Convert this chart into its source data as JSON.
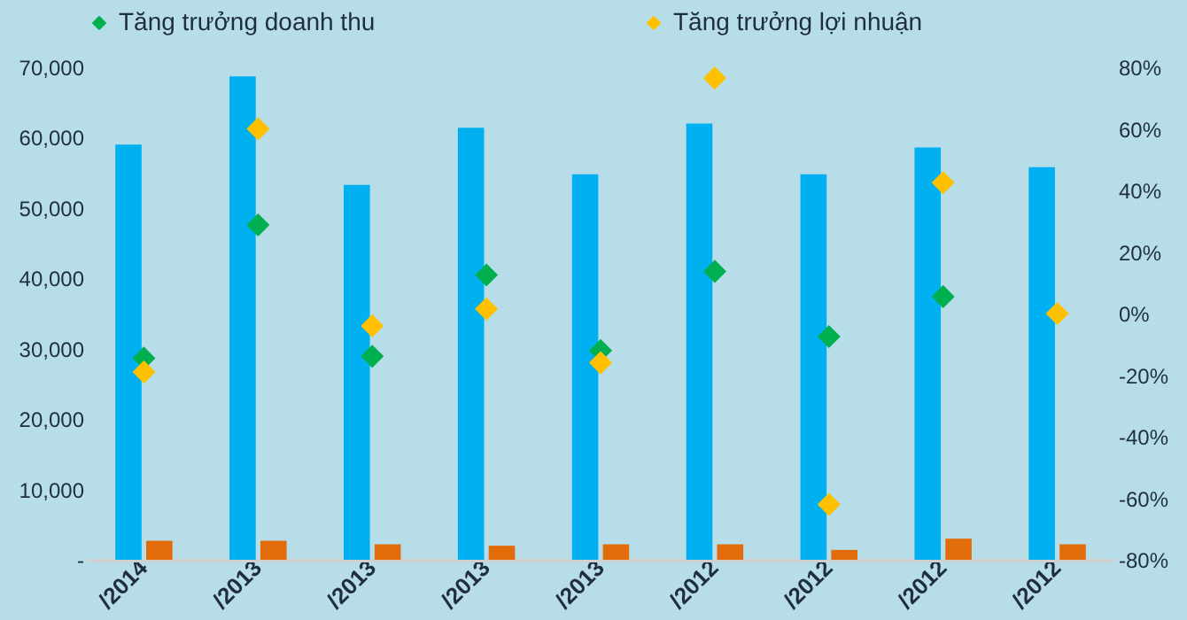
{
  "chart_data": {
    "type": "bar",
    "categories": [
      "/2014",
      "/2013",
      "/2013",
      "/2013",
      "/2013",
      "/2012",
      "/2012",
      "/2012",
      "/2012"
    ],
    "series": [
      {
        "axis": "y",
        "color": "#00b0f0",
        "values": [
          59000,
          68700,
          53300,
          61400,
          54800,
          62000,
          54800,
          58600,
          55800
        ]
      },
      {
        "axis": "y",
        "color": "#e36c0a",
        "values": [
          2700,
          2700,
          2200,
          2000,
          2200,
          2200,
          1400,
          3000,
          2200
        ]
      },
      {
        "type": "scatter",
        "axis": "y2",
        "name": "Tăng trưởng doanh thu",
        "color": "#00b050",
        "values": [
          -14.5,
          28.8,
          -13.9,
          12.5,
          -12,
          13.7,
          -7.5,
          5.5,
          null
        ]
      },
      {
        "type": "scatter",
        "axis": "y2",
        "name": "Tăng trưởng lợi nhuận",
        "color": "#ffc000",
        "values": [
          -19,
          60,
          -4,
          1.5,
          -16,
          76.5,
          -62,
          42.5,
          0
        ]
      }
    ],
    "ylim": [
      0,
      70000
    ],
    "yticks": [
      {
        "value": 0,
        "label": "-"
      },
      {
        "value": 10000,
        "label": "10,000"
      },
      {
        "value": 20000,
        "label": "20,000"
      },
      {
        "value": 30000,
        "label": "30,000"
      },
      {
        "value": 40000,
        "label": "40,000"
      },
      {
        "value": 50000,
        "label": "50,000"
      },
      {
        "value": 60000,
        "label": "60,000"
      },
      {
        "value": 70000,
        "label": "70,000"
      }
    ],
    "y2lim": [
      -80,
      80
    ],
    "y2ticks": [
      {
        "value": -80,
        "label": "-80%"
      },
      {
        "value": -60,
        "label": "-60%"
      },
      {
        "value": -40,
        "label": "-40%"
      },
      {
        "value": -20,
        "label": "-20%"
      },
      {
        "value": 0,
        "label": "0%"
      },
      {
        "value": 20,
        "label": "20%"
      },
      {
        "value": 40,
        "label": "40%"
      },
      {
        "value": 60,
        "label": "60%"
      },
      {
        "value": 80,
        "label": "80%"
      }
    ],
    "grid": false,
    "legend": "top",
    "marker": "diamond"
  }
}
